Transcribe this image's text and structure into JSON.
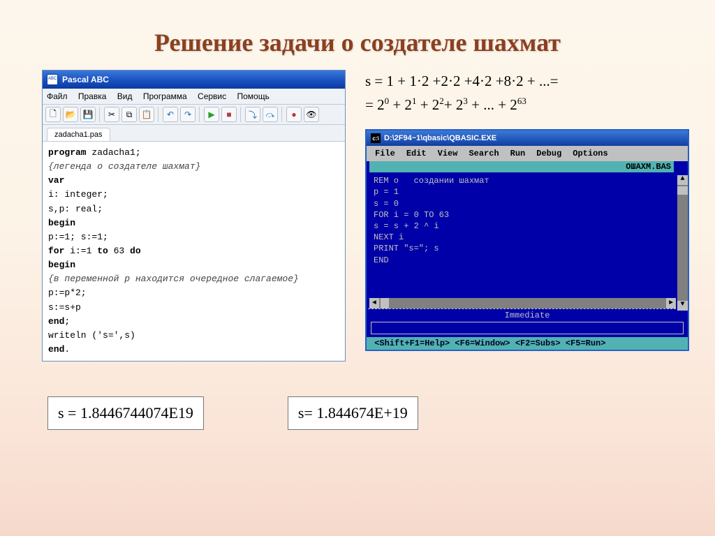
{
  "title": "Решение задачи о создателе шахмат",
  "pascal": {
    "window_title": "Pascal ABC",
    "menu": [
      "Файл",
      "Правка",
      "Вид",
      "Программа",
      "Сервис",
      "Помощь"
    ],
    "toolbar_icons": [
      "new",
      "open",
      "save",
      "sep",
      "cut",
      "copy",
      "paste",
      "sep",
      "undo",
      "redo",
      "sep",
      "run",
      "stop",
      "sep",
      "step-into",
      "step-over",
      "sep",
      "breakpoint",
      "watch"
    ],
    "tab": "zadacha1.pas",
    "code": {
      "l1_kw": "program",
      "l1_rest": " zadacha1;",
      "l2_com": "{легенда о создателе шахмат}",
      "l3_kw": "var",
      "l4": "i: integer;",
      "l5": "s,p: real;",
      "l6_kw": "begin",
      "l7": "p:=1; s:=1;",
      "l8_a": "for",
      "l8_b": " i:=1 ",
      "l8_c": "to",
      "l8_d": " 63 ",
      "l8_e": "do",
      "l9_kw": "begin",
      "l10_com": "{в переменной p находится очередное слагаемое}",
      "l11": " p:=p*2;",
      "l12": " s:=s+p",
      "l13_kw": "end",
      "l13_rest": ";",
      "l14": " writeln ('s=',s)",
      "l15_kw": "end",
      "l15_rest": "."
    }
  },
  "formula": {
    "line1": "s = 1 + 1·2 +2·2 +4·2 +8·2 + ...=",
    "line2_html": "= 2<sup>0</sup> + 2<sup>1</sup> + 2<sup>2</sup>+ 2<sup>3</sup> + ... + 2<sup>63</sup>"
  },
  "qbasic": {
    "title": "D:\\2F94~1\\qbasic\\QBASIC.EXE",
    "menu": [
      "File",
      "Edit",
      "View",
      "Search",
      "Run",
      "Debug",
      "Options"
    ],
    "filename": "OШAXM.BAS",
    "code": "REM о   создании шахмат\np = 1\ns = 0\nFOR i = 0 TO 63\ns = s + 2 ^ i\nNEXT i\nPRINT \"s=\"; s\nEND",
    "immediate_label": "Immediate",
    "status": " <Shift+F1=Help> <F6=Window> <F2=Subs> <F5=Run>"
  },
  "results": {
    "pascal": "s = 1.8446744074E19",
    "qbasic": "s= 1.844674E+19"
  },
  "colors": {
    "slide_bg_top": "#fdf6ec",
    "slide_bg_bottom": "#f6d9cc",
    "title_color": "#8b4020",
    "win_titlebar": "#1b54c4",
    "qbasic_bg": "#0000a8",
    "qbasic_teal": "#51b2b2",
    "qbasic_grey": "#c0c0c0"
  }
}
